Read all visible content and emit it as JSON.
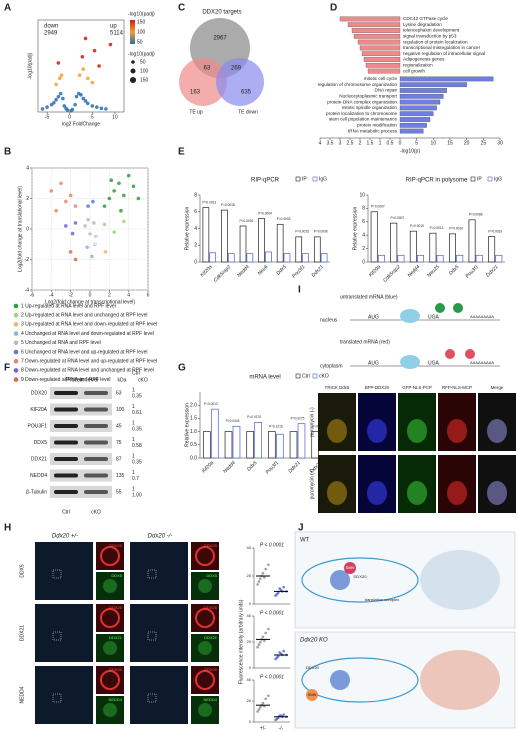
{
  "figure": {
    "panel_labels": [
      "A",
      "B",
      "C",
      "D",
      "E",
      "F",
      "G",
      "H",
      "I",
      "J"
    ]
  },
  "chart_data": [
    {
      "type": "scatter",
      "xlabel": "log2 FoldChange",
      "ylabel": "-log10(padj)",
      "xlim": [
        -7,
        12
      ],
      "xticks": [
        -5,
        0,
        5,
        10
      ],
      "ylim": [
        0,
        150
      ],
      "annotations": [
        "down",
        "2949",
        "up",
        "5114"
      ],
      "colorbar": {
        "title": "-log10(padj)",
        "ticks": [
          150,
          100,
          50
        ],
        "colors": [
          "#d7191c",
          "#f0a030",
          "#2c6db5"
        ]
      },
      "size_legend": {
        "title": "-log10(padj)",
        "values": [
          50,
          100,
          150
        ]
      },
      "series": [
        {
          "color": "#2c6db5",
          "x": [
            -6,
            -5,
            -4,
            -3.5,
            -3,
            -2.5,
            -2,
            -1.5,
            -1.2,
            1.2,
            1.5,
            2,
            2.5,
            3,
            3.5,
            4,
            5,
            6,
            7,
            8,
            -0.5,
            0.3,
            0.6,
            -0.8
          ],
          "values": [
            5,
            8,
            12,
            15,
            20,
            25,
            30,
            22,
            10,
            12,
            25,
            30,
            28,
            22,
            18,
            14,
            10,
            8,
            6,
            5,
            3,
            2,
            4,
            6
          ]
        },
        {
          "color": "#f0a030",
          "x": [
            -3,
            -2.2,
            -1.8,
            2.2,
            3,
            4,
            5
          ],
          "values": [
            45,
            55,
            60,
            60,
            70,
            55,
            48
          ]
        },
        {
          "color": "#d7191c",
          "x": [
            -2.5,
            2.8,
            3.5,
            5.5,
            6.5,
            9
          ],
          "values": [
            80,
            90,
            120,
            100,
            75,
            110
          ]
        }
      ]
    },
    {
      "type": "scatter",
      "xlabel": "Log2(fold change at transcriptional level)",
      "ylabel": "Log2(fold change at translational level)",
      "xlim": [
        -6,
        6
      ],
      "xticks": [
        -6,
        -4,
        -2,
        0,
        2,
        4,
        6
      ],
      "ylim": [
        -4,
        4
      ],
      "yticks": [
        -4,
        -2,
        0,
        2,
        4
      ],
      "grid": true,
      "legend": "below",
      "labels": [
        "Kif20a",
        "Pou3f1",
        "Nedd4",
        "Ddx21",
        "Ddx5"
      ],
      "series": [
        {
          "name": "1 Up-regulated at RNA level and RPF level",
          "color": "#2e9e3e",
          "x": [
            1.5,
            2,
            2.5,
            3,
            3.5,
            4,
            4.5,
            5,
            2.2,
            3.2
          ],
          "values": [
            1.5,
            2,
            2.5,
            3,
            2.2,
            3.5,
            2.8,
            2,
            3.2,
            1.2
          ]
        },
        {
          "name": "2 Up-regulated at RNA level and unchanged at RPF level",
          "color": "#9bd38a",
          "x": [
            1.5,
            2.5,
            3.5
          ],
          "values": [
            0.3,
            -0.2,
            0.5
          ]
        },
        {
          "name": "3 Up-regulated at RNA level and down-regulated at RPF level",
          "color": "#f2b36b",
          "x": [
            1.6
          ],
          "values": [
            -1.5
          ]
        },
        {
          "name": "4 Unchanged at RNA level and down-regulated at RPF level",
          "color": "#8fb3e0",
          "x": [
            -0.3,
            0.2,
            0.5
          ],
          "values": [
            -1.2,
            -1.8,
            -1
          ]
        },
        {
          "name": "5 Unchanged at RNA and RPF level",
          "color": "#bbbbbb",
          "x": [
            -0.5,
            0,
            0.4,
            -0.2,
            0.6
          ],
          "values": [
            0.2,
            -0.3,
            0.4,
            0.6,
            -0.5
          ]
        },
        {
          "name": "6 Unchanged at RNA level and up-regulated at RPF level",
          "color": "#5a78d8",
          "x": [
            -0.2,
            0.3
          ],
          "values": [
            1.5,
            1.8
          ]
        },
        {
          "name": "7 Down-regulated at RNA level and up-regulated at RPF level",
          "color": "#e8856a",
          "x": [
            -4,
            -3,
            -2.5,
            -2,
            -1.5,
            -3.5
          ],
          "values": [
            2.5,
            3,
            1.8,
            2.2,
            1.5,
            1.2
          ]
        },
        {
          "name": "8 Down-regulated at RNA level and unchanged at RPF level",
          "color": "#7a60d0",
          "x": [
            -2.5,
            -1.8,
            -1.5
          ],
          "values": [
            0.2,
            -0.3,
            0.4
          ]
        },
        {
          "name": "9 Down-regulated at RNA and RPF level",
          "color": "#d86a55",
          "x": [
            -2,
            -1.5
          ],
          "values": [
            -1.5,
            -2
          ]
        }
      ]
    },
    {
      "type": "barh",
      "color": "#f08a8a",
      "xlim": [
        4,
        0
      ],
      "xticks": [
        4,
        3.5,
        3,
        2.5,
        2,
        1.5,
        1,
        0.5,
        0
      ],
      "categories": [
        "CDC42 GTPase cycle",
        "Lysine degradation",
        "telencephalon development",
        "signal transduction by p53",
        "regulation of protein localization",
        "transcriptional misregulation in cancer",
        "negative regulation of intracellular signal",
        "Adipogenesis genes",
        "regionalization",
        "cell growth"
      ],
      "values": [
        3.0,
        2.6,
        2.4,
        2.3,
        2.1,
        2.0,
        1.9,
        1.8,
        1.7,
        1.6
      ]
    },
    {
      "type": "barh",
      "color": "#6f7fe0",
      "xlim": [
        0,
        30
      ],
      "xticks": [
        5,
        10,
        15,
        20,
        25,
        30
      ],
      "xlabel": "-log10(p)",
      "categories": [
        "mitotic cell cycle",
        "regulation of chromosome organization",
        "DNA repair",
        "Nucleocytoplasmic transport",
        "protein-DNA complex organization",
        "mitotic spindle organization",
        "protein localization to chromosome",
        "stem cell population maintenance",
        "protein modification",
        "tRNA metabolic process"
      ],
      "values": [
        28,
        20,
        14,
        13,
        12,
        11,
        10,
        9,
        8,
        7
      ]
    },
    {
      "type": "bar",
      "title": "RIP-qPCR",
      "ylabel": "Relative expression",
      "ylim": [
        0,
        8
      ],
      "yticks": [
        0,
        2,
        4,
        6,
        8
      ],
      "categories": [
        "Kif20a",
        "Cdk5rap2",
        "Nedd4",
        "Neu6",
        "Ddx5",
        "Pou3f1",
        "Ddx21"
      ],
      "p_labels": [
        "P=0.0013",
        "P=0.0018",
        "P=0.0002",
        "P=0.0004",
        "P=0.0003",
        "P=0.0015",
        "P=0.0008"
      ],
      "series": [
        {
          "name": "IP",
          "color": "#222222",
          "values": [
            6.5,
            6.2,
            4.3,
            5.2,
            4.5,
            3.0,
            3.0
          ]
        },
        {
          "name": "IgG",
          "color": "#4a5fd6",
          "values": [
            1.1,
            1,
            1,
            1.2,
            1,
            1,
            1
          ]
        }
      ]
    },
    {
      "type": "bar",
      "title": "RIP-qPCR in polysome",
      "ylabel": "Relative expression",
      "ylim": [
        0,
        10
      ],
      "yticks": [
        0,
        2,
        4,
        6,
        8,
        10
      ],
      "categories": [
        "Kif20a",
        "Cdk5rap2",
        "Nedd4",
        "Neu25",
        "Ddx5",
        "Pou3f1",
        "Ddx21"
      ],
      "p_labels": [
        "P=0.0007",
        "P=0.0007",
        "P=0.0015",
        "P=0.0013",
        "P=0.0010",
        "P=0.0086",
        "P=0.0033"
      ],
      "series": [
        {
          "name": "IP",
          "color": "#222222",
          "values": [
            7.5,
            5.8,
            4.6,
            4.3,
            4.2,
            6.3,
            3.8
          ]
        },
        {
          "name": "IgG",
          "color": "#4a5fd6",
          "values": [
            1,
            1,
            1,
            1,
            1,
            1,
            1
          ]
        }
      ]
    },
    {
      "type": "bar",
      "title": "mRNA level",
      "ylabel": "Relative expression",
      "ylim": [
        0,
        2.5
      ],
      "yticks": [
        {
          "value": 0,
          "label": "0.0"
        },
        0.5,
        {
          "value": 1,
          "label": "1.0"
        },
        1.5,
        {
          "value": 2,
          "label": "2.0"
        }
      ],
      "categories": [
        "Kif20a",
        "Nedd4",
        "Ddx5",
        "Pou3f1",
        "Ddx21",
        "Ddx20"
      ],
      "p_labels": [
        "P=0.0013",
        "P=0.0443",
        "P=0.0170",
        "P=0.1216",
        "P=0.0275",
        "P<0.0001"
      ],
      "series": [
        {
          "name": "Ctrl",
          "color": "#222222",
          "values": [
            1,
            1,
            1,
            1,
            1,
            1
          ]
        },
        {
          "name": "cKO",
          "color": "#4a5fd6",
          "values": [
            1.85,
            1.2,
            1.35,
            0.9,
            1.3,
            0.1
          ]
        }
      ]
    },
    {
      "type": "dot",
      "annotation": "P < 0.0001",
      "ylim": [
        0,
        40
      ],
      "yticks": [
        0,
        20,
        40
      ],
      "colors": [
        "#888888",
        "#4a5fd6"
      ],
      "values": [
        20,
        9
      ],
      "points": [
        [
          14,
          18,
          22,
          25,
          28,
          16,
          20,
          19
        ],
        [
          6,
          8,
          10,
          12,
          9,
          7,
          11,
          9
        ]
      ]
    },
    {
      "type": "dot",
      "annotation": "P < 0.0001",
      "ylabel": "Fluorescence intensity (arbitrary units)",
      "ylim": [
        0,
        40
      ],
      "yticks": [
        0,
        20,
        40
      ],
      "colors": [
        "#888888",
        "#4a5fd6"
      ],
      "values": [
        22,
        10
      ],
      "points": [
        [
          16,
          20,
          24,
          27,
          30,
          18,
          22,
          21
        ],
        [
          7,
          9,
          11,
          13,
          10,
          8,
          12,
          10
        ]
      ]
    },
    {
      "type": "dot",
      "annotation": "P < 0.0001",
      "ylim": [
        0,
        40
      ],
      "yticks": [
        0,
        20,
        40
      ],
      "colors": [
        "#888888",
        "#4a5fd6"
      ],
      "values": [
        16,
        5
      ],
      "points": [
        [
          10,
          14,
          18,
          22,
          25,
          12,
          16,
          15
        ],
        [
          2,
          4,
          6,
          7,
          5,
          3,
          6,
          5
        ]
      ],
      "categories": [
        "+/-",
        "-/-"
      ]
    }
  ],
  "venn": {
    "title": "DDX20 targets",
    "counts": [
      2967,
      63,
      269,
      163,
      635
    ],
    "sets": [
      "TE up",
      "TE down"
    ]
  },
  "blot": {
    "title": "Protein level",
    "unit": "kDa",
    "conditions": [
      "Ctrl",
      "cKO"
    ],
    "rows": [
      {
        "name": "DDX20",
        "kda": 63,
        "ratios": [
          1,
          0.35
        ]
      },
      {
        "name": "KIF20A",
        "kda": 100,
        "ratios": [
          1,
          0.61
        ]
      },
      {
        "name": "POU3F1",
        "kda": 45,
        "ratios": [
          1,
          0.35
        ]
      },
      {
        "name": "DDX5",
        "kda": 75,
        "ratios": [
          1,
          0.58
        ]
      },
      {
        "name": "DDX21",
        "kda": 87,
        "ratios": [
          1,
          0.35
        ]
      },
      {
        "name": "NEDD4",
        "kda": 135,
        "ratios": [
          1,
          0.7
        ]
      },
      {
        "name": "β-Tubulin",
        "kda": 55,
        "ratios": [
          1,
          "1.00"
        ]
      }
    ]
  },
  "imaging_h": {
    "genotypes": [
      "Ddx20 +/-",
      "Ddx20 -/-"
    ],
    "rows": [
      "DDX5",
      "DDX21",
      "NEDD4"
    ],
    "inset_label": "DDX20"
  },
  "diagram_i": {
    "untranslated": "untranslated mRNA (blue)",
    "translated": "translated mRNA (red)",
    "nucleus": "nucleus",
    "cytoplasm": "cytoplasm",
    "start": "AUG",
    "stop": "UGA",
    "polya": "AAAAAAAAA",
    "columns": [
      "TRICK Ddx5",
      "BFP-DDX20",
      "GFP-NLS-PCP",
      "RFP-NLS-MCP",
      "Merge"
    ],
    "rows": [
      "puromycin (-)",
      "puromycin (+)"
    ]
  },
  "model_j": {
    "wt": "WT",
    "ko": "Ddx20 KO",
    "smn": "SMN",
    "ddx20": "DDX20",
    "complex": "translation complex"
  }
}
